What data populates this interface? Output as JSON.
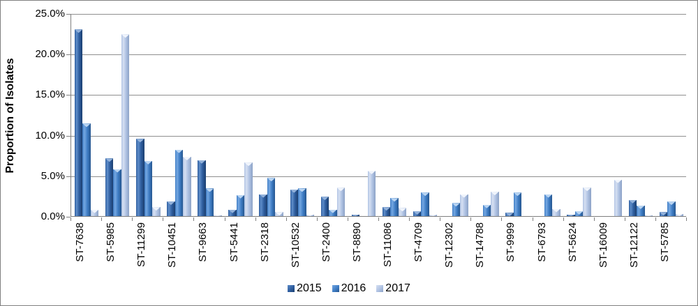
{
  "chart_data": {
    "type": "bar",
    "title": "",
    "xlabel": "",
    "ylabel": "Proportion of Isolates",
    "ylim": [
      0,
      25
    ],
    "grid": true,
    "legend_position": "bottom",
    "yticks": [
      {
        "value": 0,
        "label": "0.0%"
      },
      {
        "value": 5,
        "label": "5.0%"
      },
      {
        "value": 10,
        "label": "10.0%"
      },
      {
        "value": 15,
        "label": "15.0%"
      },
      {
        "value": 20,
        "label": "20.0%"
      },
      {
        "value": 25,
        "label": "25.0%"
      }
    ],
    "categories": [
      "ST-7638",
      "ST-5985",
      "ST-11299",
      "ST-10451",
      "ST-9663",
      "ST-5441",
      "ST-2318",
      "ST-10532",
      "ST-2400",
      "ST-8890",
      "ST-11086",
      "ST-4709",
      "ST-12302",
      "ST-14788",
      "ST-9999",
      "ST-6793",
      "ST-5624",
      "ST-16009",
      "ST-12122",
      "ST-5785"
    ],
    "series": [
      {
        "name": "2015",
        "color": "#2E5D9E",
        "color_dark": "#1B3F6F",
        "color_light": "#5E8DC9",
        "cap_color": "#93B2DB",
        "values": [
          23.0,
          7.1,
          9.5,
          1.8,
          6.9,
          0.8,
          2.7,
          3.3,
          2.4,
          0.2,
          1.1,
          0.6,
          0,
          0,
          0.4,
          0,
          0.2,
          0,
          2.0,
          0.5
        ]
      },
      {
        "name": "2016",
        "color": "#3E7CC4",
        "color_dark": "#25568F",
        "color_light": "#74A7E2",
        "cap_color": "#BAD5F2",
        "values": [
          11.4,
          5.8,
          6.8,
          8.2,
          3.4,
          2.6,
          4.7,
          3.4,
          0.8,
          0,
          2.2,
          2.9,
          1.6,
          1.4,
          2.9,
          2.7,
          0.6,
          0,
          1.3,
          1.8
        ]
      },
      {
        "name": "2017",
        "color": "#AFC2E3",
        "color_dark": "#8CA2C6",
        "color_light": "#D6E0F2",
        "cap_color": "#F1F5FC",
        "values": [
          0.8,
          22.4,
          1.1,
          7.3,
          0.1,
          6.6,
          0.5,
          0.2,
          3.5,
          5.6,
          1.0,
          0.2,
          2.7,
          3.0,
          0,
          0.9,
          3.5,
          4.5,
          0.1,
          0.3
        ]
      }
    ]
  },
  "style_colors": {
    "axis": "#7F7F7F",
    "gridline": "#8F8F8F",
    "text": "#000000",
    "background": "#FFFFFF"
  }
}
